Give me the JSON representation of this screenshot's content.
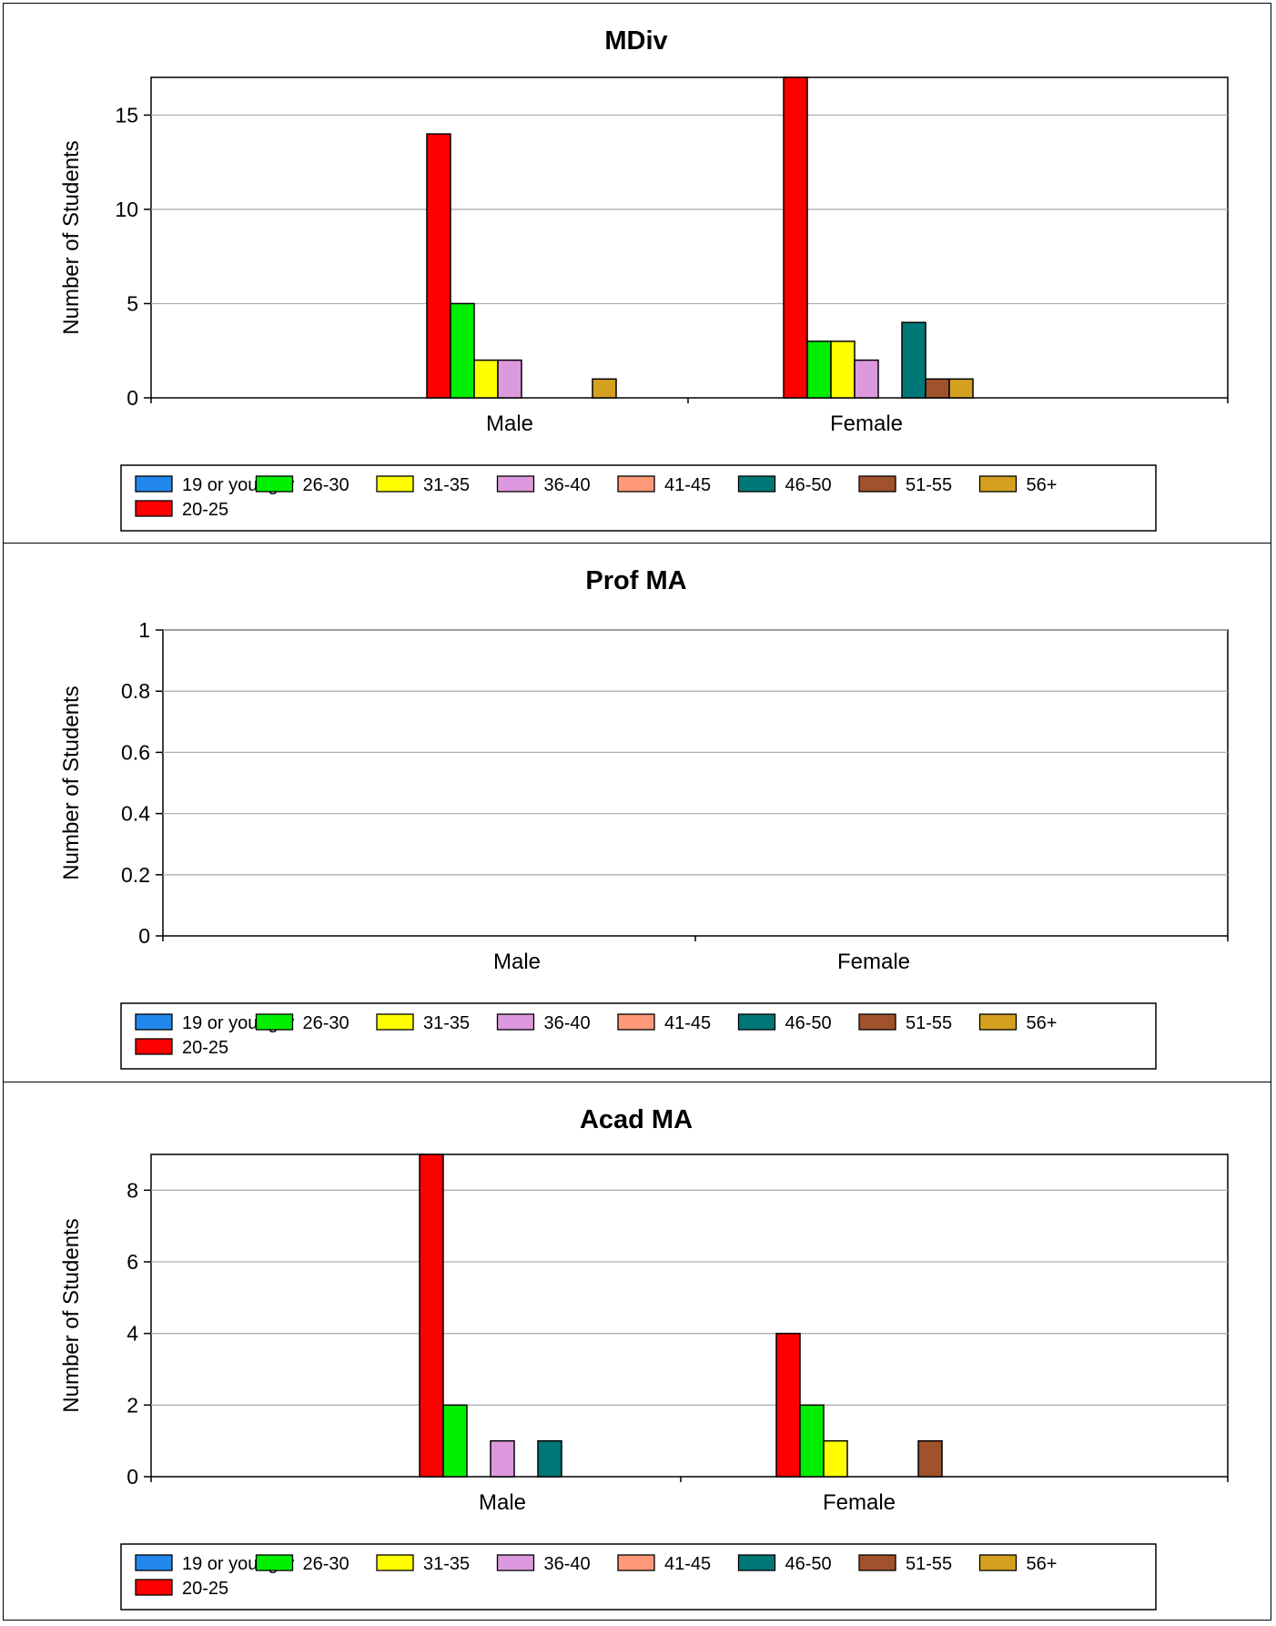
{
  "legend": {
    "items": [
      {
        "label": "19 or younger",
        "color": "#2288ee"
      },
      {
        "label": "20-25",
        "color": "#ff0000"
      },
      {
        "label": "26-30",
        "color": "#00ee00"
      },
      {
        "label": "31-35",
        "color": "#ffff00"
      },
      {
        "label": "36-40",
        "color": "#dd99dd"
      },
      {
        "label": "41-45",
        "color": "#ff9977"
      },
      {
        "label": "46-50",
        "color": "#007777"
      },
      {
        "label": "51-55",
        "color": "#a0522d"
      },
      {
        "label": "56+",
        "color": "#d4a020"
      }
    ],
    "placement": "bottom"
  },
  "chart_data": [
    {
      "type": "bar",
      "title": "MDiv",
      "ylabel": "Number of Students",
      "xlabel": "",
      "categories": [
        "Male",
        "Female"
      ],
      "ylim": [
        0,
        17
      ],
      "yticks": [
        "0",
        "5",
        "10",
        "15"
      ],
      "ytick_values": [
        0,
        5,
        10,
        15
      ],
      "grid": true,
      "series": [
        {
          "name": "19 or younger",
          "values": [
            0,
            0
          ]
        },
        {
          "name": "20-25",
          "values": [
            14,
            17
          ]
        },
        {
          "name": "26-30",
          "values": [
            5,
            3
          ]
        },
        {
          "name": "31-35",
          "values": [
            2,
            3
          ]
        },
        {
          "name": "36-40",
          "values": [
            2,
            2
          ]
        },
        {
          "name": "41-45",
          "values": [
            0,
            0
          ]
        },
        {
          "name": "46-50",
          "values": [
            0,
            4
          ]
        },
        {
          "name": "51-55",
          "values": [
            0,
            1
          ]
        },
        {
          "name": "56+",
          "values": [
            1,
            1
          ]
        }
      ]
    },
    {
      "type": "bar",
      "title": "Prof MA",
      "ylabel": "Number of Students",
      "xlabel": "",
      "categories": [
        "Male",
        "Female"
      ],
      "ylim": [
        0,
        1
      ],
      "yticks": [
        "0",
        "0.2",
        "0.4",
        "0.6",
        "0.8",
        "1"
      ],
      "ytick_values": [
        0,
        0.2,
        0.4,
        0.6,
        0.8,
        1
      ],
      "grid": true,
      "series": [
        {
          "name": "19 or younger",
          "values": [
            0,
            0
          ]
        },
        {
          "name": "20-25",
          "values": [
            0,
            0
          ]
        },
        {
          "name": "26-30",
          "values": [
            0,
            0
          ]
        },
        {
          "name": "31-35",
          "values": [
            0,
            0
          ]
        },
        {
          "name": "36-40",
          "values": [
            0,
            0
          ]
        },
        {
          "name": "41-45",
          "values": [
            0,
            0
          ]
        },
        {
          "name": "46-50",
          "values": [
            0,
            0
          ]
        },
        {
          "name": "51-55",
          "values": [
            0,
            0
          ]
        },
        {
          "name": "56+",
          "values": [
            0,
            0
          ]
        }
      ]
    },
    {
      "type": "bar",
      "title": "Acad MA",
      "ylabel": "Number of Students",
      "xlabel": "",
      "categories": [
        "Male",
        "Female"
      ],
      "ylim": [
        0,
        9
      ],
      "yticks": [
        "0",
        "2",
        "4",
        "6",
        "8"
      ],
      "ytick_values": [
        0,
        2,
        4,
        6,
        8
      ],
      "grid": true,
      "series": [
        {
          "name": "19 or younger",
          "values": [
            0,
            0
          ]
        },
        {
          "name": "20-25",
          "values": [
            9,
            4
          ]
        },
        {
          "name": "26-30",
          "values": [
            2,
            2
          ]
        },
        {
          "name": "31-35",
          "values": [
            0,
            1
          ]
        },
        {
          "name": "36-40",
          "values": [
            1,
            0
          ]
        },
        {
          "name": "41-45",
          "values": [
            0,
            0
          ]
        },
        {
          "name": "46-50",
          "values": [
            1,
            0
          ]
        },
        {
          "name": "51-55",
          "values": [
            0,
            1
          ]
        },
        {
          "name": "56+",
          "values": [
            0,
            0
          ]
        }
      ]
    }
  ]
}
